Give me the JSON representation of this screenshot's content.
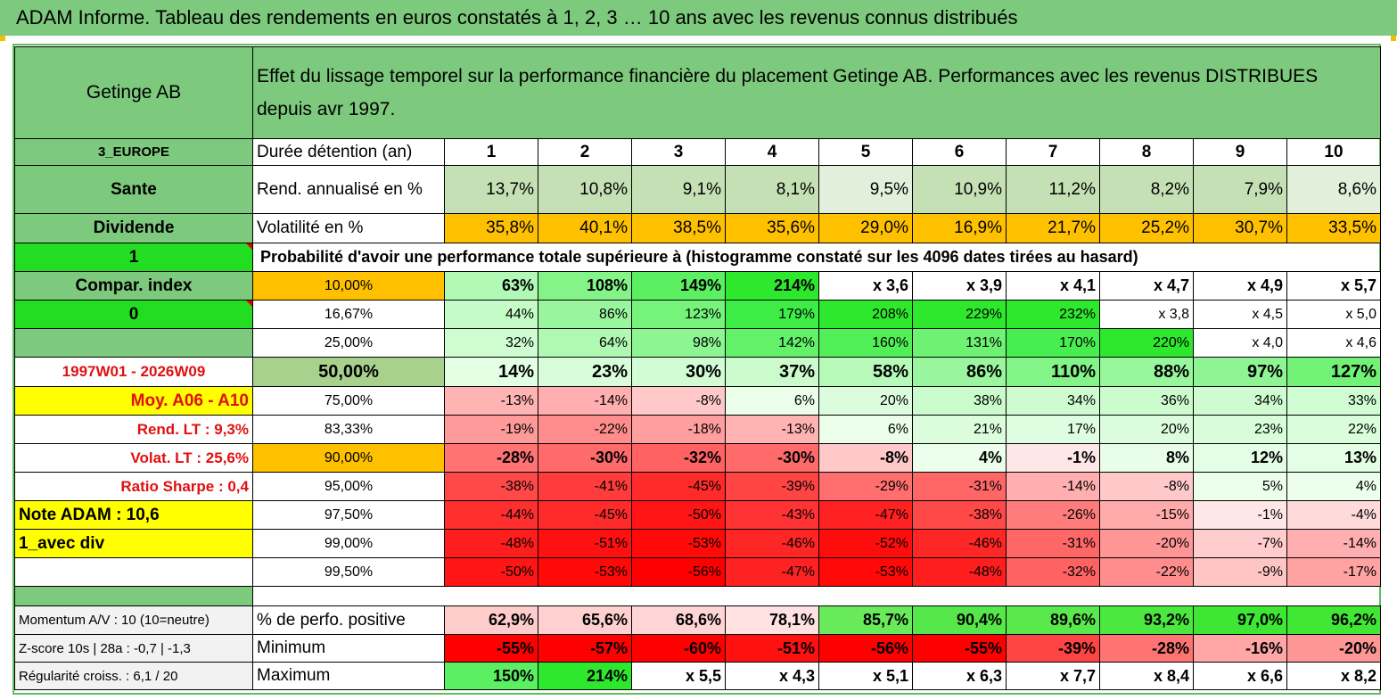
{
  "title": "ADAM Informe. Tableau des rendements en euros constatés à 1, 2, 3 … 10 ans avec les revenus connus distribués",
  "header": {
    "name": "Getinge AB",
    "description_line1": "Effet du lissage temporel sur la performance financière du placement Getinge AB. Performances avec les revenus DISTRIBUES",
    "description_line2": "depuis avr 1997."
  },
  "info_rows": [
    {
      "left": "3_EUROPE",
      "label": "Durée détention (an)",
      "values": [
        "1",
        "2",
        "3",
        "4",
        "5",
        "6",
        "7",
        "8",
        "9",
        "10"
      ]
    },
    {
      "left": "Sante",
      "label": "Rend. annualisé en %",
      "values": [
        "13,7%",
        "10,8%",
        "9,1%",
        "8,1%",
        "9,5%",
        "10,9%",
        "11,2%",
        "8,2%",
        "7,9%",
        "8,6%"
      ]
    },
    {
      "left": "Dividende",
      "label": "Volatilité en %",
      "values": [
        "35,8%",
        "40,1%",
        "38,5%",
        "35,6%",
        "29,0%",
        "16,9%",
        "21,7%",
        "25,2%",
        "30,7%",
        "33,5%"
      ]
    }
  ],
  "prob_row": {
    "left": "1",
    "text": "Probabilité d'avoir une performance totale supérieure à (histogramme constaté sur les 4096 dates tirées au hasard)"
  },
  "prob_rows": [
    {
      "left": "Compar. index",
      "label": "10,00%",
      "values": [
        "63%",
        "108%",
        "149%",
        "214%",
        "x 3,6",
        "x 3,9",
        "x 4,1",
        "x 4,7",
        "x 4,9",
        "x 5,7"
      ]
    },
    {
      "left": "0",
      "label": "16,67%",
      "values": [
        "44%",
        "86%",
        "123%",
        "179%",
        "208%",
        "229%",
        "232%",
        "x 3,8",
        "x 4,5",
        "x 5,0"
      ]
    },
    {
      "left": "",
      "label": "25,00%",
      "values": [
        "32%",
        "64%",
        "98%",
        "142%",
        "160%",
        "131%",
        "170%",
        "220%",
        "x 4,0",
        "x 4,6"
      ]
    },
    {
      "left": "1997W01 - 2026W09",
      "label": "50,00%",
      "values": [
        "14%",
        "23%",
        "30%",
        "37%",
        "58%",
        "86%",
        "110%",
        "88%",
        "97%",
        "127%"
      ]
    },
    {
      "left": "Moy. A06 - A10",
      "label": "75,00%",
      "values": [
        "-13%",
        "-14%",
        "-8%",
        "6%",
        "20%",
        "38%",
        "34%",
        "36%",
        "34%",
        "33%"
      ]
    },
    {
      "left": "Rend. LT :   9,3%",
      "label": "83,33%",
      "values": [
        "-19%",
        "-22%",
        "-18%",
        "-13%",
        "6%",
        "21%",
        "17%",
        "20%",
        "23%",
        "22%"
      ]
    },
    {
      "left": "Volat. LT :   25,6%",
      "label": "90,00%",
      "values": [
        "-28%",
        "-30%",
        "-32%",
        "-30%",
        "-8%",
        "4%",
        "-1%",
        "8%",
        "12%",
        "13%"
      ]
    },
    {
      "left": "Ratio Sharpe :    0,4",
      "label": "95,00%",
      "values": [
        "-38%",
        "-41%",
        "-45%",
        "-39%",
        "-29%",
        "-31%",
        "-14%",
        "-8%",
        "5%",
        "4%"
      ]
    },
    {
      "left": "Note ADAM : 10,6",
      "label": "97,50%",
      "values": [
        "-44%",
        "-45%",
        "-50%",
        "-43%",
        "-47%",
        "-38%",
        "-26%",
        "-15%",
        "-1%",
        "-4%"
      ]
    },
    {
      "left": "1_avec div",
      "label": "99,00%",
      "values": [
        "-48%",
        "-51%",
        "-53%",
        "-46%",
        "-52%",
        "-46%",
        "-31%",
        "-20%",
        "-7%",
        "-14%"
      ]
    },
    {
      "left": "",
      "label": "99,50%",
      "values": [
        "-50%",
        "-53%",
        "-56%",
        "-47%",
        "-53%",
        "-48%",
        "-32%",
        "-22%",
        "-9%",
        "-17%"
      ]
    }
  ],
  "stat_rows": [
    {
      "left": "Momentum A/V : 10 (10=neutre)",
      "label": "% de perfo. positive",
      "values": [
        "62,9%",
        "65,6%",
        "68,6%",
        "78,1%",
        "85,7%",
        "90,4%",
        "89,6%",
        "93,2%",
        "97,0%",
        "96,2%"
      ]
    },
    {
      "left": "Z-score 10s | 28a : -0,7 | -1,3",
      "label": "Minimum",
      "values": [
        "-55%",
        "-57%",
        "-60%",
        "-51%",
        "-56%",
        "-55%",
        "-39%",
        "-28%",
        "-16%",
        "-20%"
      ]
    },
    {
      "left": "Régularité croiss. : 6,1 / 20",
      "label": "Maximum",
      "values": [
        "150%",
        "214%",
        "x 5,5",
        "x 4,3",
        "x 5,1",
        "x 6,3",
        "x 7,7",
        "x 8,4",
        "x 6,6",
        "x 8,2"
      ]
    }
  ],
  "colors": {
    "header_green": "#7dc97d",
    "bright_green": "#22dd22",
    "orange": "#ffc000",
    "yellow": "#ffff00",
    "label_red": "#e01010"
  }
}
